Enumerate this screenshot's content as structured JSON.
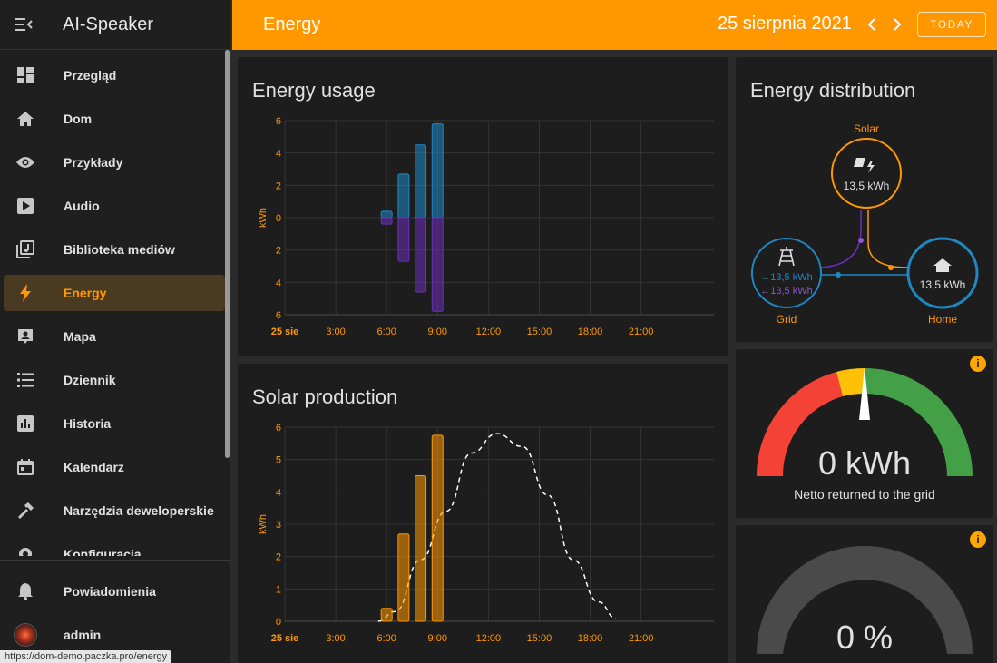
{
  "sidebar": {
    "title": "AI-Speaker",
    "items": [
      {
        "label": "Przegląd",
        "icon": "dashboard-icon"
      },
      {
        "label": "Dom",
        "icon": "home-icon"
      },
      {
        "label": "Przykłady",
        "icon": "eye-icon"
      },
      {
        "label": "Audio",
        "icon": "play-box-icon"
      },
      {
        "label": "Biblioteka mediów",
        "icon": "music-library-icon"
      },
      {
        "label": "Energy",
        "icon": "lightning-bolt-icon",
        "active": true
      },
      {
        "label": "Mapa",
        "icon": "map-account-icon"
      },
      {
        "label": "Dziennik",
        "icon": "list-icon"
      },
      {
        "label": "Historia",
        "icon": "chart-box-icon"
      },
      {
        "label": "Kalendarz",
        "icon": "calendar-icon"
      },
      {
        "label": "Narzędzia deweloperskie",
        "icon": "hammer-icon"
      },
      {
        "label": "Konfiguracja",
        "icon": "cog-icon"
      }
    ],
    "notifications": "Powiadomienia",
    "user": "admin",
    "status_url": "https://dom-demo.paczka.pro/energy"
  },
  "topbar": {
    "title": "Energy",
    "date": "25 sierpnia 2021",
    "today_label": "TODAY"
  },
  "energy_usage": {
    "title": "Energy usage",
    "chart_data": {
      "type": "bar",
      "ylabel": "kWh",
      "y_ticks": [
        "6",
        "4",
        "2",
        "0",
        "2",
        "4",
        "6"
      ],
      "ylim": [
        -6,
        6
      ],
      "x_ticks": [
        "25 sie",
        "3:00",
        "6:00",
        "9:00",
        "12:00",
        "15:00",
        "18:00",
        "21:00"
      ],
      "grid": true,
      "series": [
        {
          "color": "#1e88c5",
          "points": [
            {
              "hour": 6,
              "value": 0.4
            },
            {
              "hour": 7,
              "value": 2.7
            },
            {
              "hour": 8,
              "value": 4.5
            },
            {
              "hour": 9,
              "value": 5.8
            }
          ]
        },
        {
          "color": "#6a2fb8",
          "points": [
            {
              "hour": 6,
              "value": -0.4
            },
            {
              "hour": 7,
              "value": -2.7
            },
            {
              "hour": 8,
              "value": -4.6
            },
            {
              "hour": 9,
              "value": -5.8
            }
          ]
        }
      ]
    }
  },
  "solar_production": {
    "title": "Solar production",
    "chart_data": {
      "type": "bar",
      "ylabel": "kWh",
      "y_ticks": [
        "6",
        "5",
        "4",
        "3",
        "2",
        "1",
        "0"
      ],
      "ylim": [
        0,
        6
      ],
      "x_ticks": [
        "25 sie",
        "3:00",
        "6:00",
        "9:00",
        "12:00",
        "15:00",
        "18:00",
        "21:00"
      ],
      "grid": true,
      "series": [
        {
          "color": "#ff9800",
          "points": [
            {
              "hour": 6,
              "value": 0.4
            },
            {
              "hour": 7,
              "value": 2.7
            },
            {
              "hour": 8,
              "value": 4.5
            },
            {
              "hour": 9,
              "value": 5.75
            }
          ]
        }
      ],
      "forecast": {
        "style": "dashed",
        "color": "#ffffff",
        "points": [
          {
            "hour": 5.5,
            "value": 0
          },
          {
            "hour": 6.5,
            "value": 0.3
          },
          {
            "hour": 8,
            "value": 1.9
          },
          {
            "hour": 9.5,
            "value": 3.4
          },
          {
            "hour": 11,
            "value": 5.2
          },
          {
            "hour": 12.5,
            "value": 5.8
          },
          {
            "hour": 14,
            "value": 5.4
          },
          {
            "hour": 15.5,
            "value": 3.9
          },
          {
            "hour": 17,
            "value": 1.9
          },
          {
            "hour": 18.5,
            "value": 0.6
          },
          {
            "hour": 19.5,
            "value": 0.1
          }
        ]
      }
    }
  },
  "distribution": {
    "title": "Energy distribution",
    "solar": {
      "label": "Solar",
      "value": "13,5 kWh",
      "color": "#ff9800"
    },
    "grid": {
      "label": "Grid",
      "in": "→13,5 kWh",
      "out": "←13,5 kWh",
      "color": "#1e88c5",
      "out_color": "#8e54d1"
    },
    "home": {
      "label": "Home",
      "value": "13,5 kWh",
      "color": "#1e88c5"
    }
  },
  "gauge_return": {
    "value": "0 kWh",
    "label": "Netto returned to the grid",
    "needle": 0.55,
    "segments": [
      "#f44336",
      "#ffc107",
      "#43a047"
    ]
  },
  "gauge_percent": {
    "value": "0 %",
    "level": 0
  }
}
